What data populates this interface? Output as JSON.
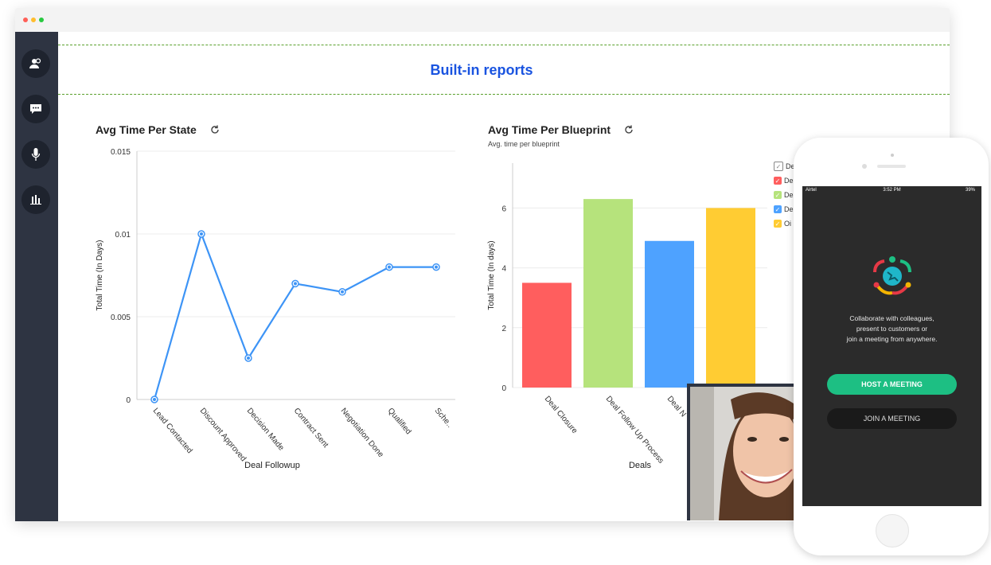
{
  "page": {
    "title": "Built-in reports"
  },
  "sidebar": {
    "items": [
      {
        "icon": "contacts-icon"
      },
      {
        "icon": "chat-icon"
      },
      {
        "icon": "microphone-icon"
      },
      {
        "icon": "bar-chart-icon"
      }
    ]
  },
  "chart_data": [
    {
      "type": "line",
      "title": "Avg Time Per State",
      "xlabel": "Deal Followup",
      "ylabel": "Total Time (In Days)",
      "categories": [
        "Lead Contacted",
        "Discount Approved",
        "Decision Made",
        "Contract Sent",
        "Negotiation Done",
        "Qualified",
        "Sche.."
      ],
      "values": [
        0,
        0.01,
        0.0025,
        0.007,
        0.0065,
        0.008,
        0.008
      ],
      "ylim": [
        0,
        0.015
      ],
      "yticks": [
        "0",
        "0.005",
        "0.01",
        "0.015"
      ],
      "ytick_values": [
        0,
        0.005,
        0.01,
        0.015
      ],
      "color": "#3d94f6",
      "grid": true
    },
    {
      "type": "bar",
      "title": "Avg Time Per Blueprint",
      "subtitle": "Avg. time per blueprint",
      "xlabel": "Deals",
      "ylabel": "Total Time (In days)",
      "categories": [
        "Deal Closure",
        "Deal Follow Up Process",
        "Deal N",
        ""
      ],
      "values": [
        3.5,
        6.3,
        4.9,
        6.0
      ],
      "colors": [
        "#ff5e5e",
        "#b6e37c",
        "#4ea2ff",
        "#ffcc33"
      ],
      "ylim": [
        0,
        7.5
      ],
      "yticks": [
        "0",
        "2",
        "4",
        "6"
      ],
      "ytick_values": [
        0,
        2,
        4,
        6
      ],
      "legend": {
        "position": "right",
        "items": [
          {
            "label": "De",
            "color": "#ffffff",
            "check": "#888888"
          },
          {
            "label": "De",
            "color": "#ff5e5e"
          },
          {
            "label": "De",
            "color": "#b6e37c"
          },
          {
            "label": "De",
            "color": "#4ea2ff"
          },
          {
            "label": "Oi",
            "color": "#ffcc33"
          }
        ]
      }
    }
  ],
  "phone": {
    "status": {
      "carrier": "Airtel",
      "time": "3:52 PM",
      "battery": "39%"
    },
    "tagline": [
      "Collaborate with colleagues,",
      "present to customers or",
      "join a meeting from anywhere."
    ],
    "host_label": "HOST A MEETING",
    "join_label": "JOIN A MEETING"
  }
}
